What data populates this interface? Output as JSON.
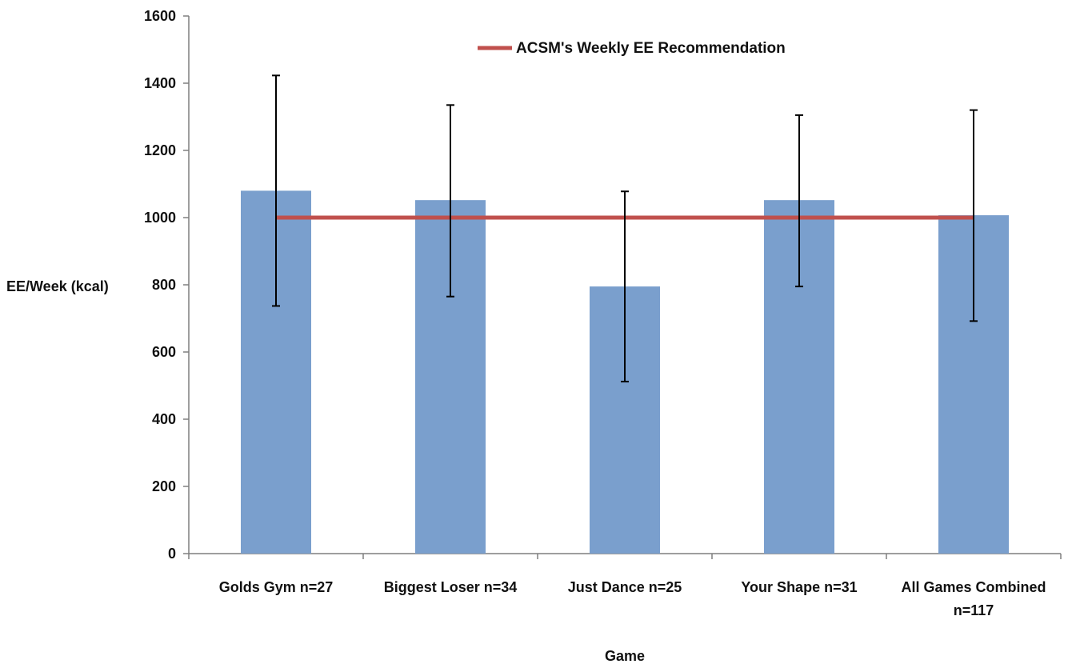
{
  "chart_data": {
    "type": "bar",
    "title": "",
    "xlabel": "Game",
    "ylabel": "EE/Week (kcal)",
    "ylim": [
      0,
      1600
    ],
    "yticks": [
      "0",
      "200",
      "400",
      "600",
      "800",
      "1000",
      "1200",
      "1400",
      "1600"
    ],
    "categories": [
      [
        "Golds Gym n=27"
      ],
      [
        "Biggest Loser n=34"
      ],
      [
        "Just Dance n=25"
      ],
      [
        "Your Shape n=31"
      ],
      [
        "All Games Combined",
        "n=117"
      ]
    ],
    "series": [
      {
        "values": [
          1080,
          1052,
          795,
          1052,
          1007
        ],
        "error_low": [
          737,
          765,
          512,
          795,
          692
        ],
        "error_high": [
          1423,
          1335,
          1078,
          1305,
          1320
        ],
        "color": "#7a9fcd"
      }
    ],
    "reference_line": {
      "name": "ACSM's Weekly EE Recommendation",
      "value": 1000,
      "color": "#c0504d"
    },
    "grid": false,
    "legend_position": "top-center"
  }
}
